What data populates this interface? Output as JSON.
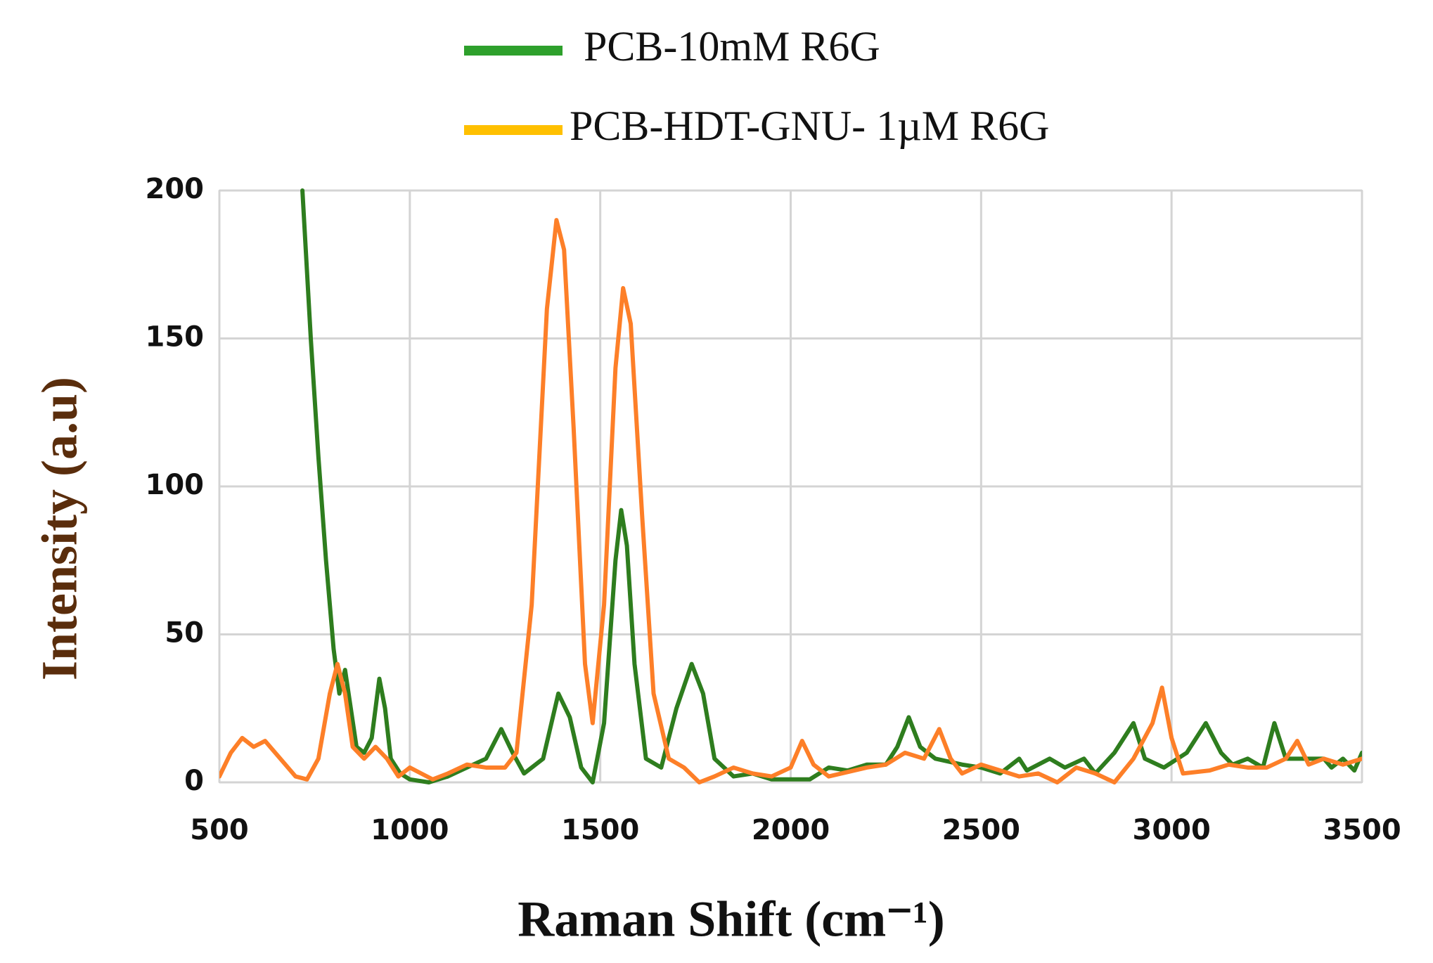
{
  "chart_data": {
    "type": "line",
    "x_label": "Raman Shift (cm⁻¹)",
    "y_label": "Intensity (a.u)",
    "xlim": [
      500,
      3500
    ],
    "xticks": [
      500,
      1000,
      1500,
      2000,
      2500,
      3000,
      3500
    ],
    "ylim": [
      0,
      200
    ],
    "yticks": [
      0,
      50,
      100,
      150,
      200
    ],
    "grid": true,
    "legend": "top",
    "series": [
      {
        "name": "PCB-10mM R6G",
        "color": "#2e7d1e",
        "legend_color": "#2ea02c",
        "x": [
          718,
          740,
          760,
          780,
          800,
          815,
          830,
          845,
          860,
          880,
          900,
          920,
          935,
          950,
          975,
          1000,
          1050,
          1100,
          1150,
          1200,
          1240,
          1270,
          1300,
          1350,
          1390,
          1420,
          1450,
          1480,
          1510,
          1540,
          1555,
          1570,
          1590,
          1620,
          1660,
          1700,
          1740,
          1770,
          1800,
          1850,
          1900,
          1950,
          2000,
          2050,
          2100,
          2150,
          2200,
          2250,
          2280,
          2310,
          2340,
          2380,
          2450,
          2500,
          2550,
          2600,
          2620,
          2680,
          2720,
          2770,
          2800,
          2850,
          2900,
          2930,
          2980,
          3040,
          3090,
          3130,
          3160,
          3200,
          3240,
          3270,
          3300,
          3350,
          3400,
          3420,
          3450,
          3480,
          3500
        ],
        "values": [
          200,
          150,
          110,
          75,
          45,
          30,
          38,
          25,
          12,
          10,
          15,
          35,
          25,
          8,
          3,
          1,
          0,
          2,
          5,
          8,
          18,
          10,
          3,
          8,
          30,
          22,
          5,
          0,
          20,
          75,
          92,
          80,
          40,
          8,
          5,
          25,
          40,
          30,
          8,
          2,
          3,
          1,
          1,
          1,
          5,
          4,
          6,
          6,
          12,
          22,
          12,
          8,
          6,
          5,
          3,
          8,
          4,
          8,
          5,
          8,
          3,
          10,
          20,
          8,
          5,
          10,
          20,
          10,
          6,
          8,
          5,
          20,
          8,
          8,
          8,
          5,
          8,
          4,
          10
        ]
      },
      {
        "name": "PCB-HDT-GNU- 1µM R6G",
        "color": "#fd7f28",
        "legend_color": "#ffc000",
        "x": [
          500,
          530,
          560,
          590,
          620,
          660,
          700,
          730,
          760,
          790,
          810,
          830,
          850,
          880,
          910,
          940,
          970,
          1000,
          1030,
          1060,
          1100,
          1150,
          1200,
          1250,
          1280,
          1320,
          1360,
          1385,
          1405,
          1430,
          1460,
          1480,
          1510,
          1540,
          1560,
          1580,
          1610,
          1640,
          1680,
          1720,
          1760,
          1800,
          1850,
          1900,
          1950,
          2000,
          2030,
          2060,
          2100,
          2200,
          2250,
          2300,
          2350,
          2390,
          2420,
          2450,
          2500,
          2550,
          2600,
          2650,
          2700,
          2750,
          2800,
          2850,
          2900,
          2950,
          2975,
          3000,
          3030,
          3100,
          3150,
          3200,
          3250,
          3300,
          3330,
          3360,
          3400,
          3450,
          3500
        ],
        "values": [
          2,
          10,
          15,
          12,
          14,
          8,
          2,
          1,
          8,
          30,
          40,
          30,
          12,
          8,
          12,
          8,
          2,
          5,
          3,
          1,
          3,
          6,
          5,
          5,
          10,
          60,
          160,
          190,
          180,
          120,
          40,
          20,
          60,
          140,
          167,
          155,
          90,
          30,
          8,
          5,
          0,
          2,
          5,
          3,
          2,
          5,
          14,
          6,
          2,
          5,
          6,
          10,
          8,
          18,
          8,
          3,
          6,
          4,
          2,
          3,
          0,
          5,
          3,
          0,
          8,
          20,
          32,
          15,
          3,
          4,
          6,
          5,
          5,
          8,
          14,
          6,
          8,
          6,
          8
        ]
      }
    ]
  }
}
